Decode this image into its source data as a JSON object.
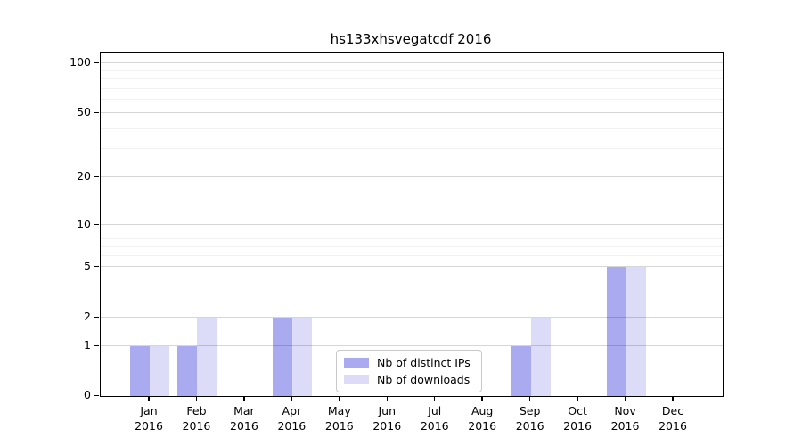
{
  "chart_data": {
    "type": "bar",
    "title": "hs133xhsvegatcdf 2016",
    "categories": [
      {
        "month": "Jan",
        "year": "2016"
      },
      {
        "month": "Feb",
        "year": "2016"
      },
      {
        "month": "Mar",
        "year": "2016"
      },
      {
        "month": "Apr",
        "year": "2016"
      },
      {
        "month": "May",
        "year": "2016"
      },
      {
        "month": "Jun",
        "year": "2016"
      },
      {
        "month": "Jul",
        "year": "2016"
      },
      {
        "month": "Aug",
        "year": "2016"
      },
      {
        "month": "Sep",
        "year": "2016"
      },
      {
        "month": "Oct",
        "year": "2016"
      },
      {
        "month": "Nov",
        "year": "2016"
      },
      {
        "month": "Dec",
        "year": "2016"
      }
    ],
    "series": [
      {
        "name": "Nb of distinct IPs",
        "color": "#aaaaf0",
        "values": [
          1,
          1,
          0,
          2,
          0,
          0,
          0,
          0,
          1,
          0,
          5,
          0
        ]
      },
      {
        "name": "Nb of downloads",
        "color": "#dcdcf8",
        "values": [
          1,
          2,
          0,
          2,
          0,
          0,
          0,
          0,
          2,
          0,
          5,
          0
        ]
      }
    ],
    "y_axis": {
      "scale": "symlog",
      "major_ticks": [
        0,
        1,
        2,
        5,
        10,
        20,
        50,
        100
      ],
      "minor_gridlines": [
        3,
        4,
        6,
        7,
        8,
        9,
        30,
        40,
        60,
        70,
        80,
        90
      ],
      "range": [
        0,
        100
      ]
    },
    "legend": {
      "position": "lower center",
      "entries": [
        "Nb of distinct IPs",
        "Nb of downloads"
      ]
    },
    "grid": true,
    "colors": {
      "major_grid": "#d6d6d6",
      "minor_grid": "#f1f1f1",
      "axis": "#000000",
      "background": "#ffffff"
    }
  }
}
